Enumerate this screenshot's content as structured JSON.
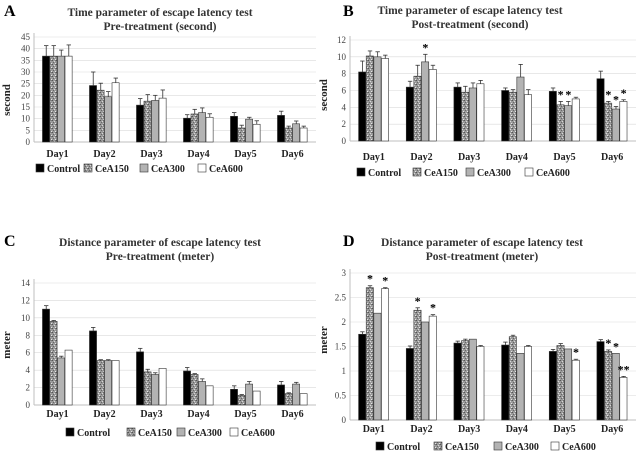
{
  "chart_data": [
    {
      "type": "bar",
      "panel": "A",
      "title": "Time parameter of escape latency test",
      "subtitle": "Pre-treatment (second)",
      "ylabel": "second",
      "xlabel": "",
      "ylim": [
        0,
        45
      ],
      "yticks": [
        0,
        5,
        10,
        15,
        20,
        25,
        30,
        35,
        40,
        45
      ],
      "grid": true,
      "legend": "bottom",
      "categories": [
        "Day1",
        "Day2",
        "Day3",
        "Day4",
        "Day5",
        "Day6"
      ],
      "series": [
        {
          "name": "Control",
          "values": [
            36.8,
            24.2,
            15.8,
            10.2,
            11.0,
            11.4
          ],
          "errors": [
            4.5,
            5.8,
            2.8,
            1.5,
            1.6,
            1.8
          ]
        },
        {
          "name": "CeA150",
          "values": [
            36.8,
            22.2,
            17.5,
            12.0,
            6.0,
            6.0
          ],
          "errors": [
            4.5,
            3.0,
            2.8,
            2.0,
            1.2,
            0.8
          ]
        },
        {
          "name": "CeA300",
          "values": [
            36.8,
            19.4,
            17.8,
            12.6,
            9.8,
            7.8
          ],
          "errors": [
            2.6,
            2.2,
            2.2,
            2.0,
            0.8,
            1.2
          ]
        },
        {
          "name": "CeA600",
          "values": [
            36.8,
            25.4,
            18.8,
            10.6,
            7.6,
            6.0
          ],
          "errors": [
            4.8,
            2.0,
            3.5,
            1.5,
            1.5,
            0.8
          ]
        }
      ],
      "annotations": []
    },
    {
      "type": "bar",
      "panel": "B",
      "title": "Time parameter of escape latency test",
      "subtitle": "Post-treatment (second)",
      "ylabel": "second",
      "xlabel": "",
      "ylim": [
        0,
        12
      ],
      "yticks": [
        0,
        2,
        4,
        6,
        8,
        10,
        12
      ],
      "grid": true,
      "legend": "bottom",
      "categories": [
        "Day1",
        "Day2",
        "Day3",
        "Day4",
        "Day5",
        "Day6"
      ],
      "series": [
        {
          "name": "Control",
          "values": [
            8.2,
            6.4,
            6.4,
            6.0,
            5.9,
            7.4
          ],
          "errors": [
            1.3,
            0.7,
            0.5,
            0.3,
            0.4,
            0.9
          ]
        },
        {
          "name": "CeA150",
          "values": [
            10.1,
            7.7,
            5.8,
            5.8,
            4.3,
            4.5
          ],
          "errors": [
            0.6,
            1.3,
            0.7,
            0.3,
            0.4,
            0.2
          ]
        },
        {
          "name": "CeA300",
          "values": [
            10.0,
            9.4,
            6.3,
            7.6,
            4.2,
            3.8
          ],
          "errors": [
            0.6,
            0.9,
            0.6,
            1.5,
            0.5,
            0.3
          ]
        },
        {
          "name": "CeA600",
          "values": [
            9.8,
            8.5,
            6.8,
            5.5,
            5.0,
            4.7
          ],
          "errors": [
            0.4,
            0.5,
            0.4,
            0.6,
            0.2,
            0.2
          ]
        }
      ],
      "annotations": [
        {
          "category": "Day2",
          "series": "CeA300",
          "text": "*"
        },
        {
          "category": "Day5",
          "series": "CeA150",
          "text": "*"
        },
        {
          "category": "Day5",
          "series": "CeA300",
          "text": "*"
        },
        {
          "category": "Day6",
          "series": "CeA150",
          "text": "*"
        },
        {
          "category": "Day6",
          "series": "CeA300",
          "text": "*"
        },
        {
          "category": "Day6",
          "series": "CeA600",
          "text": "*"
        }
      ]
    },
    {
      "type": "bar",
      "panel": "C",
      "title": "Distance parameter of escape latency test",
      "subtitle": "Pre-treatment (meter)",
      "ylabel": "meter",
      "xlabel": "",
      "ylim": [
        0,
        14
      ],
      "yticks": [
        0,
        2,
        4,
        6,
        8,
        10,
        12,
        14
      ],
      "grid": true,
      "legend": "bottom",
      "categories": [
        "Day1",
        "Day2",
        "Day3",
        "Day4",
        "Day5",
        "Day6"
      ],
      "series": [
        {
          "name": "Control",
          "values": [
            11.0,
            8.5,
            6.1,
            3.9,
            1.8,
            2.3
          ],
          "errors": [
            0.4,
            0.4,
            0.4,
            0.4,
            0.4,
            0.4
          ]
        },
        {
          "name": "CeA150",
          "values": [
            9.6,
            5.1,
            3.8,
            3.5,
            1.1,
            1.3
          ],
          "errors": [
            0.1,
            0.1,
            0.3,
            0.1,
            0.1,
            0.1
          ]
        },
        {
          "name": "CeA300",
          "values": [
            5.4,
            5.1,
            3.5,
            2.7,
            2.4,
            2.4
          ],
          "errors": [
            0.2,
            0.1,
            0.2,
            0.3,
            0.3,
            0.2
          ]
        },
        {
          "name": "CeA600",
          "values": [
            6.3,
            5.1,
            4.2,
            2.2,
            1.6,
            1.3
          ],
          "errors": [
            0,
            0,
            0,
            0,
            0,
            0
          ]
        }
      ],
      "annotations": []
    },
    {
      "type": "bar",
      "panel": "D",
      "title": "Distance parameter of escape latency test",
      "subtitle": "Post-treatment (meter)",
      "ylabel": "meter",
      "xlabel": "",
      "ylim": [
        0,
        3
      ],
      "yticks": [
        0,
        0.5,
        1,
        1.5,
        2,
        2.5,
        3
      ],
      "grid": true,
      "legend": "bottom",
      "categories": [
        "Day1",
        "Day2",
        "Day3",
        "Day4",
        "Day5",
        "Day6"
      ],
      "series": [
        {
          "name": "Control",
          "values": [
            1.75,
            1.46,
            1.57,
            1.53,
            1.4,
            1.6
          ],
          "errors": [
            0.05,
            0.05,
            0.04,
            0.06,
            0.04,
            0.04
          ]
        },
        {
          "name": "CeA150",
          "values": [
            2.7,
            2.24,
            1.62,
            1.7,
            1.52,
            1.4
          ],
          "errors": [
            0.04,
            0.05,
            0.03,
            0.03,
            0.04,
            0.03
          ]
        },
        {
          "name": "CeA300",
          "values": [
            2.18,
            2.0,
            1.65,
            1.36,
            1.45,
            1.36
          ],
          "errors": [
            0,
            0,
            0,
            0,
            0,
            0
          ]
        },
        {
          "name": "CeA600",
          "values": [
            2.68,
            2.12,
            1.5,
            1.5,
            1.22,
            0.87
          ],
          "errors": [
            0.02,
            0.03,
            0.02,
            0.02,
            0.02,
            0.02
          ]
        }
      ],
      "annotations": [
        {
          "category": "Day1",
          "series": "CeA150",
          "text": "*"
        },
        {
          "category": "Day1",
          "series": "CeA600",
          "text": "*"
        },
        {
          "category": "Day2",
          "series": "CeA150",
          "text": "*"
        },
        {
          "category": "Day2",
          "series": "CeA600",
          "text": "*"
        },
        {
          "category": "Day5",
          "series": "CeA600",
          "text": "*"
        },
        {
          "category": "Day6",
          "series": "CeA150",
          "text": "*"
        },
        {
          "category": "Day6",
          "series": "CeA300",
          "text": "*"
        },
        {
          "category": "Day6",
          "series": "CeA600",
          "text": "**"
        }
      ]
    }
  ],
  "panel_labels": [
    "A",
    "B",
    "C",
    "D"
  ],
  "series_styles": {
    "Control": {
      "fill": "#000000",
      "pattern": "solid"
    },
    "CeA150": {
      "fill": "#8c8c8c",
      "pattern": "speckle"
    },
    "CeA300": {
      "fill": "#b3b3b3",
      "pattern": "solid"
    },
    "CeA600": {
      "fill": "#ffffff",
      "pattern": "solid"
    }
  },
  "colors": {
    "axis": "#bfbfbf",
    "grid": "#d9d9d9",
    "title": "#333333",
    "bar_outline": "#333333"
  }
}
